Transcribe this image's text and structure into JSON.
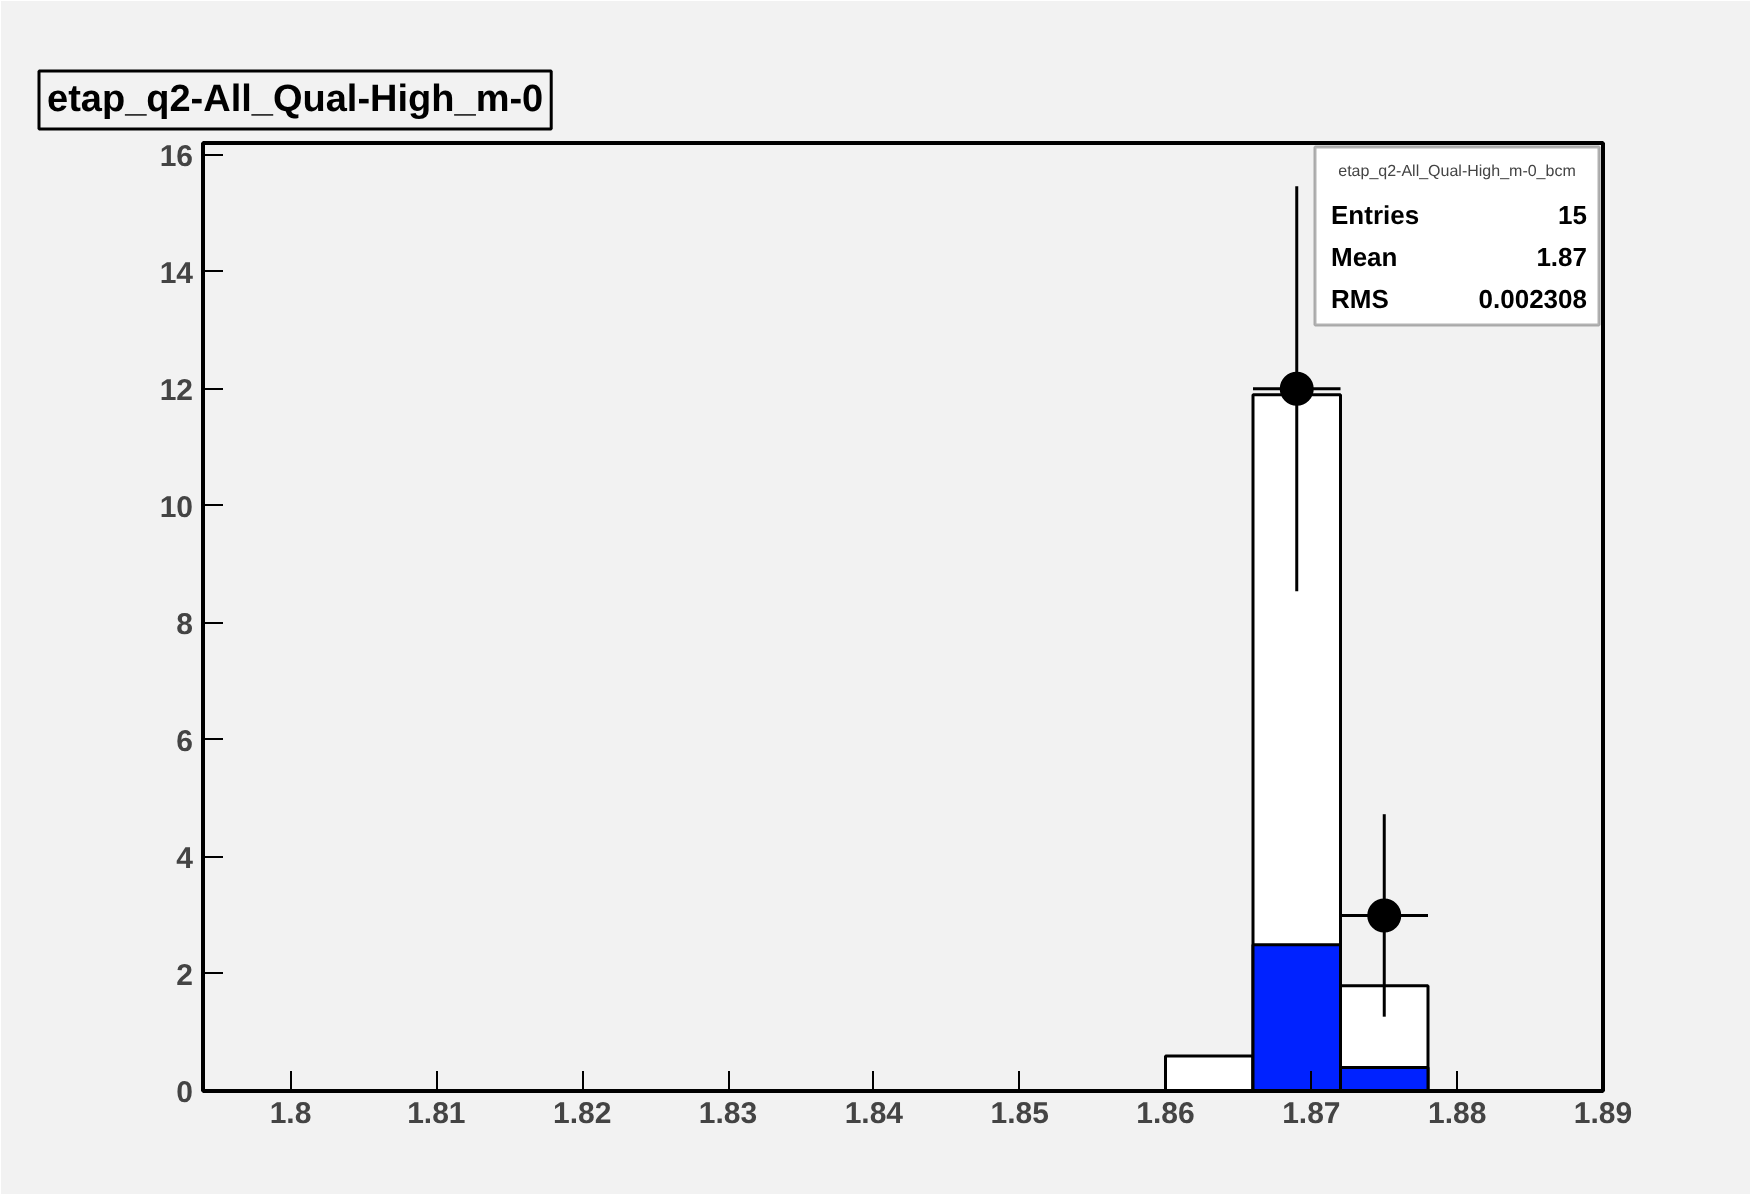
{
  "chart_data": {
    "type": "histogram",
    "title": "etap_q2-All_Qual-High_m-0",
    "bins": [
      1.794,
      1.8,
      1.806,
      1.812,
      1.818,
      1.824,
      1.83,
      1.836,
      1.842,
      1.848,
      1.854,
      1.86,
      1.866,
      1.872,
      1.878,
      1.884,
      1.89
    ],
    "series": [
      {
        "color": "#ffffff",
        "values": [
          0,
          0,
          0,
          0,
          0,
          0,
          0,
          0,
          0,
          0,
          0,
          0.6,
          11.9,
          1.8,
          0,
          0
        ]
      },
      {
        "color": "#0022ff",
        "values": [
          0,
          0,
          0,
          0,
          0,
          0,
          0,
          0,
          0,
          0,
          0,
          0,
          2.5,
          0.4,
          0,
          0
        ]
      },
      {
        "type": "scatter",
        "color": "#000000",
        "x": [
          1.869,
          1.875
        ],
        "values": [
          12,
          3
        ],
        "errors": [
          3.46,
          1.73
        ],
        "xerrors": [
          0.003,
          0.003
        ]
      }
    ],
    "xlim": [
      1.794,
      1.89
    ],
    "ylim": [
      0,
      16.2
    ],
    "xticks": [
      {
        "value": 1.8,
        "label": "1.8"
      },
      {
        "value": 1.81,
        "label": "1.81"
      },
      {
        "value": 1.82,
        "label": "1.82"
      },
      {
        "value": 1.83,
        "label": "1.83"
      },
      {
        "value": 1.84,
        "label": "1.84"
      },
      {
        "value": 1.85,
        "label": "1.85"
      },
      {
        "value": 1.86,
        "label": "1.86"
      },
      {
        "value": 1.87,
        "label": "1.87"
      },
      {
        "value": 1.88,
        "label": "1.88"
      },
      {
        "value": 1.89,
        "label": "1.89"
      }
    ],
    "yticks": [
      0,
      2,
      4,
      6,
      8,
      10,
      12,
      14,
      16
    ],
    "marker": "circle",
    "grid": false,
    "legend": false,
    "annotations": [
      "etap_q2-All_Qual-High_m-0_bcm",
      "Entries 15",
      "Mean 1.87",
      "RMS 0.002308"
    ]
  }
}
